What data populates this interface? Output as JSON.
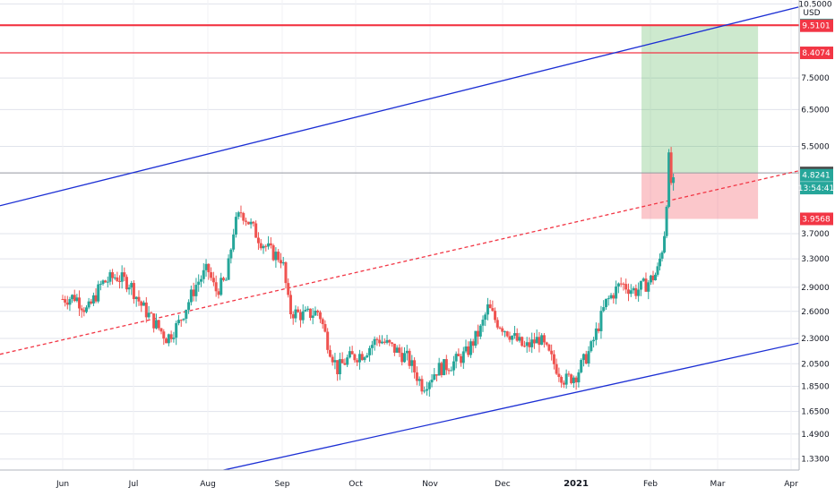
{
  "chart_data": {
    "type": "candlestick",
    "symbol": "",
    "currency_label": "USD",
    "x_axis": {
      "labels": [
        "Jun",
        "Jul",
        "Aug",
        "Sep",
        "Oct",
        "Nov",
        "Dec",
        "2021",
        "Feb",
        "Mar",
        "Apr"
      ],
      "bold": [
        "2021"
      ]
    },
    "y_axis": {
      "scale": "log",
      "range": [
        1.25,
        10.6
      ],
      "tick_labels": [
        "10.5000",
        "7.5000",
        "6.5000",
        "5.5000",
        "3.7000",
        "3.3000",
        "2.9000",
        "2.6000",
        "2.3000",
        "2.0500",
        "1.8500",
        "1.6500",
        "1.4900",
        "1.3300"
      ]
    },
    "grid": true,
    "price_labels": [
      {
        "text": "9.5408",
        "value": 9.5408,
        "color": "#26a69a"
      },
      {
        "text": "9.5101",
        "value": 9.5101,
        "color": "#f23645"
      },
      {
        "text": "8.4074",
        "value": 8.4074,
        "color": "#f23645"
      },
      {
        "text": "4.8743",
        "value": 4.8743,
        "color": "#4a4a4a"
      },
      {
        "text": "4.8241",
        "value": 4.8241,
        "color": "#26a69a"
      },
      {
        "text": "13:54:41",
        "value": 4.55,
        "color": "#26a69a"
      },
      {
        "text": "3.9568",
        "value": 3.9568,
        "color": "#f23645"
      }
    ],
    "horizontal_lines": [
      {
        "value": 9.5101,
        "color": "#f23645"
      },
      {
        "value": 8.4074,
        "color": "#f23645"
      }
    ],
    "trendlines": [
      {
        "color": "#1c2fd4",
        "style": "solid",
        "from": {
          "t": 0,
          "value": 4.2
        },
        "to": {
          "t": 10.1,
          "value": 10.35
        }
      },
      {
        "color": "#1c2fd4",
        "style": "solid",
        "from": {
          "t": 2.05,
          "value": 1.25
        },
        "to": {
          "t": 10.1,
          "value": 2.25
        }
      },
      {
        "color": "#f23645",
        "style": "dashed",
        "from": {
          "t": 0,
          "value": 2.14
        },
        "to": {
          "t": 10.1,
          "value": 4.92
        }
      }
    ],
    "position": {
      "type": "long",
      "start_t": 7.88,
      "end_t": 9.55,
      "entry": 4.8743,
      "target": 9.5408,
      "stop": 3.9568
    },
    "candles": []
  }
}
